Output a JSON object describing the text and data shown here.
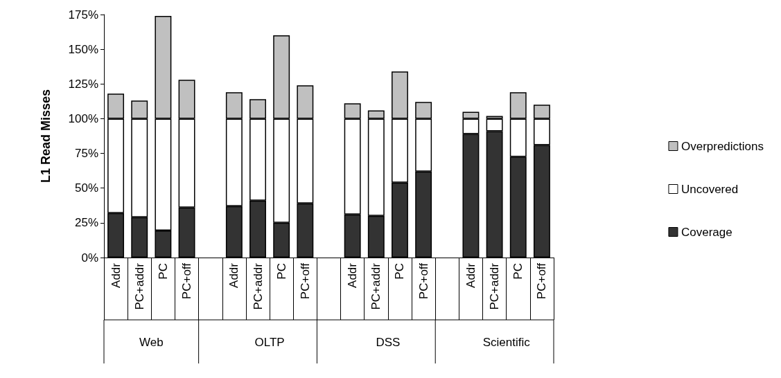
{
  "chart_data": {
    "type": "bar",
    "stacked": true,
    "ylabel": "L1 Read Misses",
    "categories": [
      "Addr",
      "PC+addr",
      "PC",
      "PC+off",
      null,
      "Addr",
      "PC+addr",
      "PC",
      "PC+off",
      null,
      "Addr",
      "PC+addr",
      "PC",
      "PC+off",
      null,
      "Addr",
      "PC+addr",
      "PC",
      "PC+off"
    ],
    "annotations": [
      "Web",
      "OLTP",
      "DSS",
      "Scientific"
    ],
    "series": [
      {
        "name": "Coverage",
        "color": "#333333",
        "values": [
          32,
          29,
          19.5,
          36,
          null,
          37,
          41,
          25,
          39,
          null,
          31,
          30,
          54,
          62,
          null,
          89,
          91,
          72.5,
          81
        ]
      },
      {
        "name": "Uncovered",
        "color": "#ffffff",
        "values": [
          68,
          71,
          80.5,
          64,
          null,
          63,
          59,
          75,
          61,
          null,
          69,
          70,
          46,
          38,
          null,
          11,
          9,
          27.5,
          19
        ]
      },
      {
        "name": "Overpredictions",
        "color": "#c0c0c0",
        "values": [
          18,
          13,
          74,
          28,
          null,
          19,
          14,
          60,
          24,
          null,
          11,
          6,
          34,
          12,
          null,
          5,
          2,
          19,
          10
        ]
      }
    ],
    "ylim": [
      0,
      175
    ],
    "yticks": [
      {
        "value": 0,
        "label": "0%"
      },
      {
        "value": 25,
        "label": "25%"
      },
      {
        "value": 50,
        "label": "50%"
      },
      {
        "value": 75,
        "label": "75%"
      },
      {
        "value": 100,
        "label": "100%"
      },
      {
        "value": 125,
        "label": "125%"
      },
      {
        "value": 150,
        "label": "150%"
      },
      {
        "value": 175,
        "label": "175%"
      }
    ],
    "grid": false,
    "legend": "right"
  }
}
